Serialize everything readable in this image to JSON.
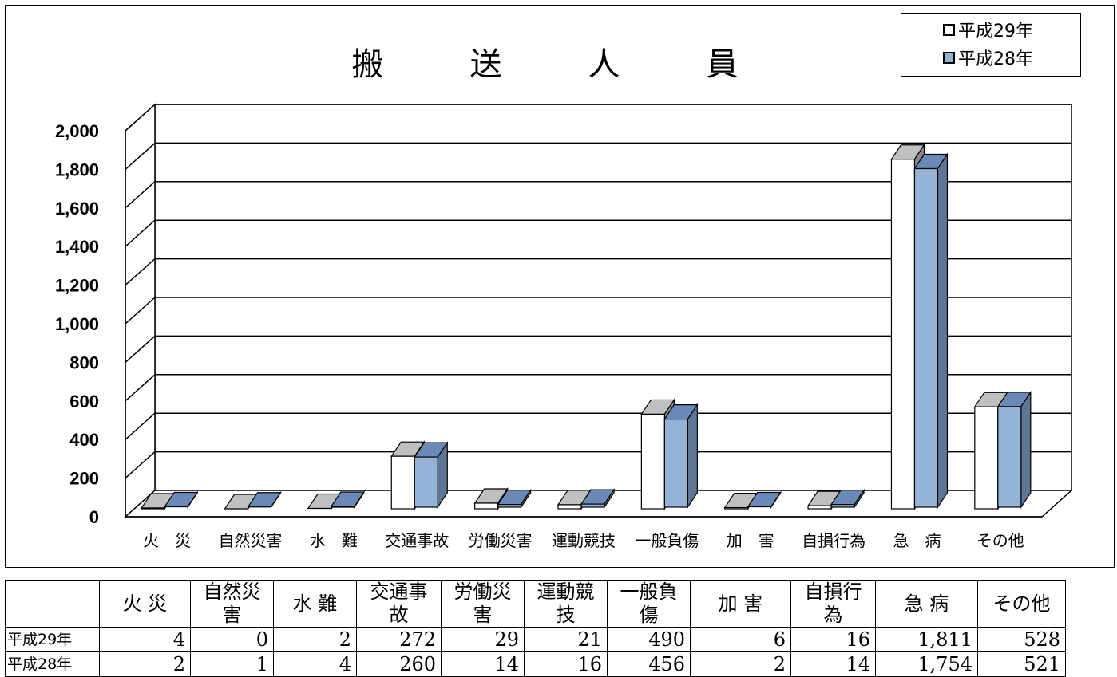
{
  "chart_data": {
    "type": "bar",
    "title": "搬　送　人　員",
    "categories": [
      "火　災",
      "自然災害",
      "水　難",
      "交通事故",
      "労働災害",
      "運動競技",
      "一般負傷",
      "加　害",
      "自損行為",
      "急　病",
      "その他"
    ],
    "series": [
      {
        "name": "平成29年",
        "values": [
          4,
          0,
          2,
          272,
          29,
          21,
          490,
          6,
          16,
          1811,
          528
        ]
      },
      {
        "name": "平成28年",
        "values": [
          2,
          1,
          4,
          260,
          14,
          16,
          456,
          2,
          14,
          1754,
          521
        ]
      }
    ],
    "y_ticks": [
      "0",
      "200",
      "400",
      "600",
      "800",
      "1,000",
      "1,200",
      "1,400",
      "1,600",
      "1,800",
      "2,000"
    ],
    "ylim": [
      0,
      2000
    ],
    "grid": true,
    "legend": "top-right",
    "colors": {
      "series1_front": "#ffffff",
      "series1_top": "#c0c0c0",
      "series1_side": "#8a8a8a",
      "series2_front": "#95b3d7",
      "series2_top": "#6b89b6",
      "series2_side": "#5e7594"
    }
  },
  "table": {
    "headers": [
      "火 災",
      "自然災害",
      "水 難",
      "交通事故",
      "労働災害",
      "運動競技",
      "一般負傷",
      "加 害",
      "自損行為",
      "急 病",
      "その他"
    ],
    "rows": [
      {
        "label": "平成29年",
        "values": [
          "4",
          "0",
          "2",
          "272",
          "29",
          "21",
          "490",
          "6",
          "16",
          "1,811",
          "528"
        ]
      },
      {
        "label": "平成28年",
        "values": [
          "2",
          "1",
          "4",
          "260",
          "14",
          "16",
          "456",
          "2",
          "14",
          "1,754",
          "521"
        ]
      }
    ]
  }
}
